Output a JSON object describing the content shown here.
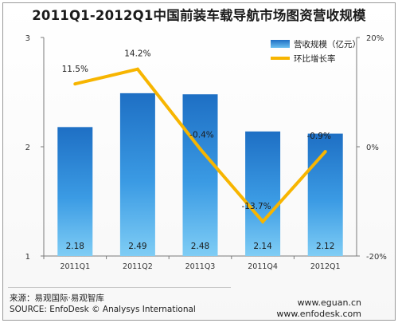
{
  "chart_data": {
    "title": "2011Q1-2012Q1中国前装车载导航市场图资营收规模",
    "categories": [
      "2011Q1",
      "2011Q2",
      "2011Q3",
      "2011Q4",
      "2012Q1"
    ],
    "series": [
      {
        "name": "营收规模（亿元）",
        "type": "bar",
        "axis": "left",
        "values": [
          2.18,
          2.49,
          2.48,
          2.14,
          2.12
        ],
        "labels": [
          "2.18",
          "2.49",
          "2.48",
          "2.14",
          "2.12"
        ],
        "color": "#2f8fd9"
      },
      {
        "name": "环比增长率",
        "type": "line",
        "axis": "right",
        "values": [
          11.5,
          14.2,
          -0.4,
          -13.7,
          -0.9
        ],
        "labels": [
          "11.5%",
          "14.2%",
          "-0.4%",
          "-13.7%",
          "-0.9%"
        ],
        "color": "#f7b500"
      }
    ],
    "y_left": {
      "ylim": [
        1,
        3
      ],
      "ticks": [
        "1",
        "2",
        "3"
      ]
    },
    "y_right": {
      "ylim": [
        -20,
        20
      ],
      "ticks": [
        "-20%",
        "0%",
        "20%"
      ]
    },
    "legend_placement": "top-right",
    "grid": false
  },
  "footer": {
    "source_cn": "来源：易观国际·易观智库",
    "source_en": "SOURCE: EnfoDesk © Analysys International",
    "url1": "www.eguan.cn",
    "url2": "www.enfodesk.com"
  }
}
